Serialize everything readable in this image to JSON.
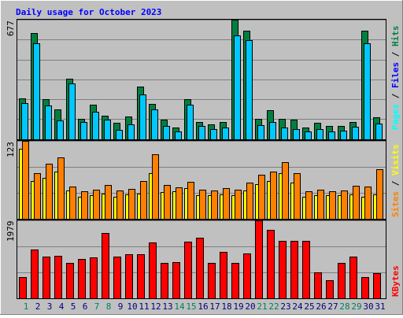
{
  "chart_data": [
    {
      "type": "bar",
      "panel": "hits-files-pages",
      "title": "Daily usage for October 2023",
      "ymax_label": "677",
      "ylim": [
        0,
        677
      ],
      "legend_labels": [
        "Pages",
        "Files",
        "Hits"
      ],
      "categories": [
        "1",
        "2",
        "3",
        "4",
        "5",
        "6",
        "7",
        "8",
        "9",
        "10",
        "11",
        "12",
        "13",
        "14",
        "15",
        "16",
        "17",
        "18",
        "19",
        "20",
        "21",
        "22",
        "23",
        "24",
        "25",
        "26",
        "27",
        "28",
        "29",
        "30",
        "31"
      ],
      "weekend_days": [
        "1",
        "7",
        "8",
        "14",
        "15",
        "21",
        "22",
        "28",
        "29"
      ],
      "series": [
        {
          "name": "Hits",
          "values": [
            230,
            600,
            225,
            170,
            345,
            115,
            195,
            135,
            95,
            130,
            300,
            200,
            110,
            65,
            225,
            100,
            85,
            100,
            677,
            615,
            115,
            165,
            115,
            110,
            65,
            95,
            75,
            75,
            100,
            615,
            125
          ]
        },
        {
          "name": "Files",
          "values": [
            205,
            545,
            190,
            105,
            315,
            100,
            155,
            110,
            55,
            85,
            255,
            170,
            75,
            45,
            195,
            75,
            60,
            65,
            590,
            560,
            80,
            100,
            65,
            60,
            45,
            60,
            45,
            50,
            70,
            545,
            90
          ]
        },
        {
          "name": "Pages",
          "values": [
            0,
            0,
            0,
            0,
            0,
            0,
            0,
            0,
            0,
            0,
            0,
            0,
            0,
            0,
            0,
            0,
            0,
            0,
            0,
            0,
            0,
            0,
            0,
            0,
            0,
            0,
            0,
            0,
            0,
            0,
            0
          ]
        }
      ],
      "colors": {
        "Hits": "#008040",
        "Files": "#00c8ff",
        "Pages": "#00ffff"
      }
    },
    {
      "type": "bar",
      "panel": "visits-sites",
      "ymax_label": "123",
      "ylim": [
        0,
        123
      ],
      "legend_labels": [
        "Sites",
        "Visits"
      ],
      "series": [
        {
          "name": "Visits",
          "values": [
            110,
            60,
            65,
            75,
            45,
            35,
            37,
            40,
            35,
            38,
            40,
            72,
            42,
            43,
            48,
            37,
            37,
            38,
            37,
            45,
            55,
            60,
            72,
            57,
            35,
            37,
            37,
            37,
            38,
            35,
            39
          ]
        },
        {
          "name": "Sites",
          "values": [
            123,
            72,
            87,
            97,
            51,
            43,
            46,
            53,
            45,
            47,
            60,
            102,
            54,
            50,
            59,
            46,
            45,
            48,
            46,
            57,
            69,
            75,
            89,
            72,
            44,
            46,
            44,
            45,
            52,
            51,
            78
          ]
        }
      ],
      "colors": {
        "Visits": "#ffff00",
        "Sites": "#ff8000"
      }
    },
    {
      "type": "bar",
      "panel": "kbytes",
      "ymax_label": "1979",
      "ylim": [
        0,
        1979
      ],
      "legend_labels": [
        "KBytes"
      ],
      "series": [
        {
          "name": "KBytes",
          "values": [
            530,
            1240,
            1050,
            1080,
            900,
            1000,
            1040,
            1650,
            1060,
            1120,
            1110,
            1420,
            900,
            910,
            1430,
            1540,
            900,
            1170,
            900,
            1140,
            1979,
            1730,
            1460,
            1460,
            1460,
            660,
            460,
            900,
            1050,
            540,
            640
          ]
        }
      ],
      "colors": {
        "KBytes": "#ff0000"
      }
    }
  ],
  "colors": {
    "background": "#c0c0c0",
    "plot_background": "#c0c0c0",
    "title": "#0000ff",
    "grid": "#808080",
    "weekday_label": "#000080",
    "weekend_label": "#00805c",
    "legend_separator": "#000000"
  }
}
